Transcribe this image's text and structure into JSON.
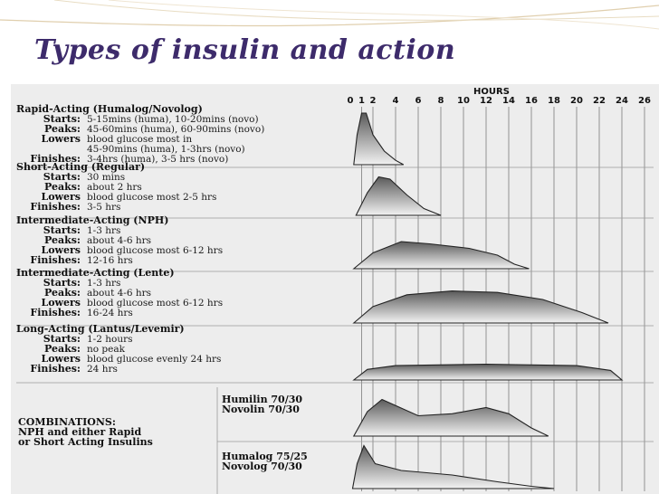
{
  "slide": {
    "title": "Types of insulin and action",
    "accent_color": "#c8a97a",
    "title_color": "#3d2b6b"
  },
  "chart_data": {
    "type": "area",
    "axis_title": "HOURS",
    "x_ticks": [
      "0",
      "1",
      "2",
      "4",
      "6",
      "8",
      "10",
      "12",
      "14",
      "16",
      "18",
      "20",
      "22",
      "24",
      "26"
    ],
    "x_range": [
      0,
      26
    ],
    "grid": true,
    "insulins": [
      {
        "id": "rapid",
        "header": "Rapid-Acting (Humalog/Novolog)",
        "rows": [
          {
            "key": "Starts:",
            "value": "5-15mins (huma), 10-20mins (novo)"
          },
          {
            "key": "Peaks:",
            "value": "45-60mins (huma), 60-90mins (novo)"
          },
          {
            "key": "Lowers",
            "value": "blood glucose most in"
          },
          {
            "key": "",
            "value": "45-90mins (huma), 1-3hrs (novo)"
          },
          {
            "key": "Finishes:",
            "value": "3-4hrs (huma), 3-5 hrs (novo)"
          }
        ],
        "curve": [
          [
            0.3,
            0
          ],
          [
            0.6,
            0.55
          ],
          [
            1.0,
            0.95
          ],
          [
            1.4,
            0.95
          ],
          [
            2.0,
            0.55
          ],
          [
            3.0,
            0.25
          ],
          [
            4.0,
            0.08
          ],
          [
            4.7,
            0
          ]
        ]
      },
      {
        "id": "short",
        "header": "Short-Acting (Regular)",
        "rows": [
          {
            "key": "Starts:",
            "value": "30 mins"
          },
          {
            "key": "Peaks:",
            "value": "about 2 hrs"
          },
          {
            "key": "Lowers",
            "value": "blood glucose most 2-5 hrs"
          },
          {
            "key": "Finishes:",
            "value": "3-5 hrs"
          }
        ],
        "curve": [
          [
            0.5,
            0
          ],
          [
            1.5,
            0.5
          ],
          [
            2.5,
            0.85
          ],
          [
            3.5,
            0.8
          ],
          [
            5.0,
            0.45
          ],
          [
            6.5,
            0.15
          ],
          [
            8.0,
            0
          ]
        ]
      },
      {
        "id": "nph",
        "header": "Intermediate-Acting (NPH)",
        "rows": [
          {
            "key": "Starts:",
            "value": "1-3 hrs"
          },
          {
            "key": "Peaks:",
            "value": "about 4-6 hrs"
          },
          {
            "key": "Lowers",
            "value": "blood glucose most 6-12 hrs"
          },
          {
            "key": "Finishes:",
            "value": "12-16 hrs"
          }
        ],
        "curve": [
          [
            0.3,
            0
          ],
          [
            2.0,
            0.35
          ],
          [
            4.5,
            0.6
          ],
          [
            7.0,
            0.55
          ],
          [
            10.5,
            0.45
          ],
          [
            13.0,
            0.3
          ],
          [
            14.5,
            0.1
          ],
          [
            15.8,
            0
          ]
        ]
      },
      {
        "id": "lente",
        "header": "Intermediate-Acting (Lente)",
        "rows": [
          {
            "key": "Starts:",
            "value": "1-3 hrs"
          },
          {
            "key": "Peaks:",
            "value": "about 4-6 hrs"
          },
          {
            "key": "Lowers",
            "value": "blood glucose most 6-12 hrs"
          },
          {
            "key": "Finishes:",
            "value": "16-24 hrs"
          }
        ],
        "curve": [
          [
            0.3,
            0
          ],
          [
            2.0,
            0.35
          ],
          [
            5.0,
            0.6
          ],
          [
            9.0,
            0.68
          ],
          [
            13.0,
            0.65
          ],
          [
            17.0,
            0.5
          ],
          [
            20.5,
            0.22
          ],
          [
            22.8,
            0
          ]
        ]
      },
      {
        "id": "long",
        "header": "Long-Acting (Lantus/Levemir)",
        "rows": [
          {
            "key": "Starts:",
            "value": "1-2 hours"
          },
          {
            "key": "Peaks:",
            "value": "no peak"
          },
          {
            "key": "Lowers",
            "value": "blood glucose evenly 24 hrs"
          },
          {
            "key": "Finishes:",
            "value": "24 hrs"
          }
        ],
        "curve": [
          [
            0.3,
            0
          ],
          [
            1.5,
            0.22
          ],
          [
            4.0,
            0.3
          ],
          [
            12.0,
            0.33
          ],
          [
            20.0,
            0.3
          ],
          [
            23.0,
            0.2
          ],
          [
            24.0,
            0
          ]
        ]
      }
    ],
    "combinations": {
      "header": "COMBINATIONS:",
      "lines": [
        "NPH and either Rapid",
        "or Short Acting Insulins"
      ],
      "groups": [
        {
          "id": "humilin",
          "names": [
            "Humilin 70/30",
            "Novolin 70/30"
          ],
          "curve": [
            [
              0.3,
              0
            ],
            [
              1.5,
              0.6
            ],
            [
              2.8,
              0.9
            ],
            [
              4.0,
              0.75
            ],
            [
              6.0,
              0.5
            ],
            [
              9.0,
              0.55
            ],
            [
              12.0,
              0.7
            ],
            [
              14.0,
              0.55
            ],
            [
              16.0,
              0.2
            ],
            [
              17.5,
              0
            ]
          ]
        },
        {
          "id": "humalog",
          "names": [
            "Humalog 75/25",
            "Novolog 70/30"
          ],
          "curve": [
            [
              0.2,
              0
            ],
            [
              0.6,
              0.55
            ],
            [
              1.2,
              0.95
            ],
            [
              2.2,
              0.55
            ],
            [
              4.5,
              0.4
            ],
            [
              9.0,
              0.3
            ],
            [
              13.0,
              0.15
            ],
            [
              16.0,
              0.05
            ],
            [
              18.0,
              0
            ]
          ]
        }
      ]
    }
  }
}
